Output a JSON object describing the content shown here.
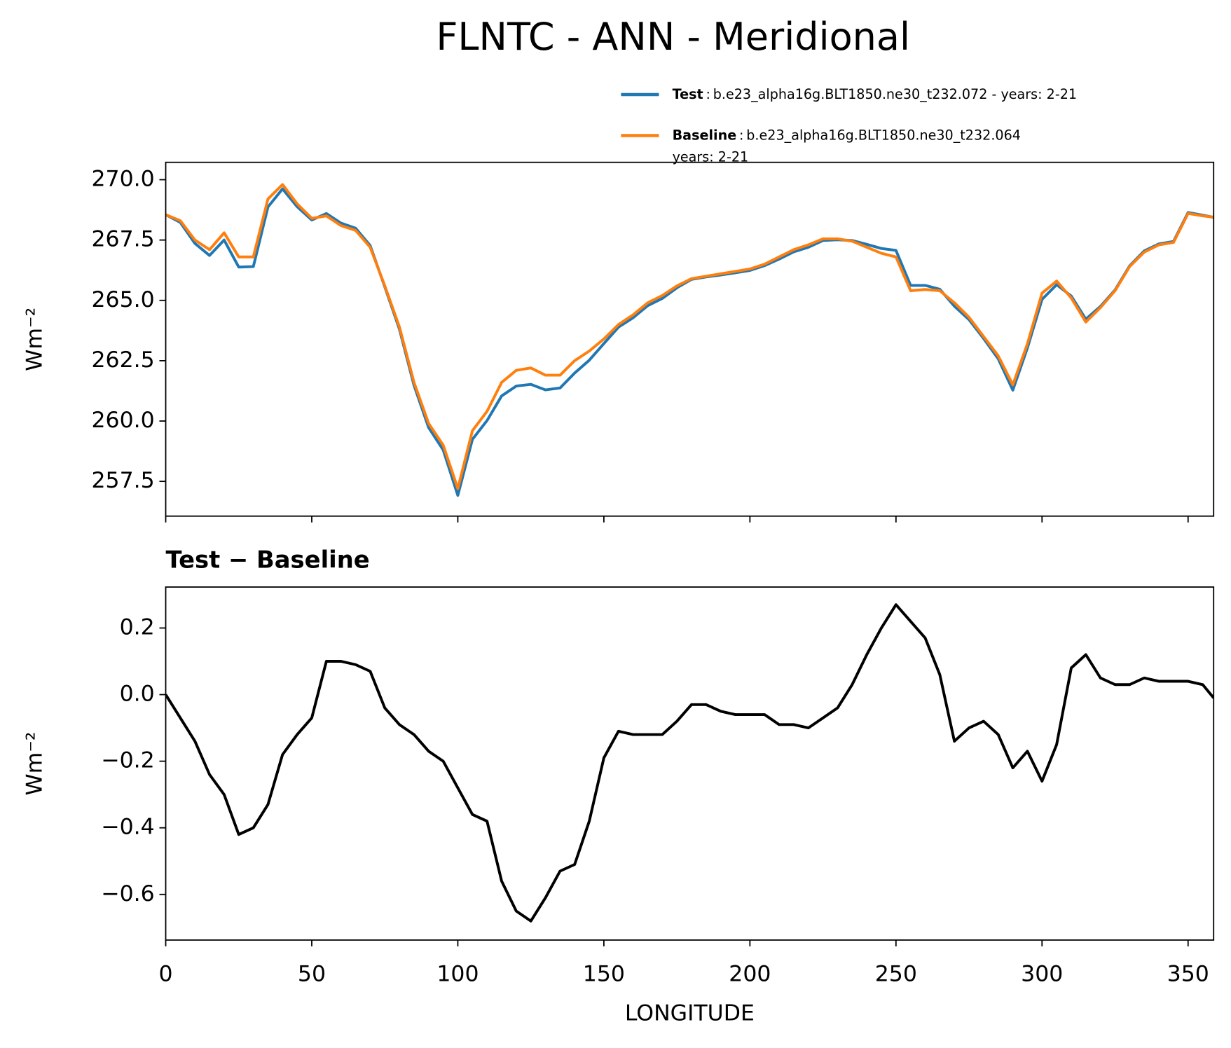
{
  "title": "FLNTC - ANN - Meridional",
  "chart_data": [
    {
      "type": "line",
      "ylabel": "Wm⁻²",
      "x": [
        0,
        5,
        10,
        15,
        20,
        25,
        30,
        35,
        40,
        45,
        50,
        55,
        60,
        65,
        70,
        75,
        80,
        85,
        90,
        95,
        100,
        105,
        110,
        115,
        120,
        125,
        130,
        135,
        140,
        145,
        150,
        155,
        160,
        165,
        170,
        175,
        180,
        185,
        190,
        195,
        200,
        205,
        210,
        215,
        220,
        225,
        230,
        235,
        240,
        245,
        250,
        255,
        260,
        265,
        270,
        275,
        280,
        285,
        290,
        295,
        300,
        305,
        310,
        315,
        320,
        325,
        330,
        335,
        340,
        345,
        350,
        355,
        358.75
      ],
      "series": [
        {
          "name": "Test",
          "label": [
            "b.e23_alpha16g.BLT1850.ne30_t232.072 - years: 2-21"
          ],
          "color": "#1f77b4",
          "values": [
            268.55,
            268.23,
            267.36,
            266.86,
            267.5,
            266.38,
            266.4,
            268.87,
            269.62,
            268.88,
            268.33,
            268.6,
            268.2,
            267.99,
            267.27,
            265.56,
            263.81,
            261.48,
            259.73,
            258.8,
            256.92,
            259.24,
            260.02,
            261.04,
            261.45,
            261.52,
            261.29,
            261.37,
            261.99,
            262.52,
            263.21,
            263.89,
            264.28,
            264.78,
            265.08,
            265.52,
            265.87,
            265.97,
            266.05,
            266.14,
            266.24,
            266.44,
            266.71,
            267.01,
            267.2,
            267.48,
            267.51,
            267.48,
            267.32,
            267.15,
            267.07,
            265.62,
            265.62,
            265.46,
            264.76,
            264.2,
            263.42,
            262.58,
            261.28,
            263.03,
            265.04,
            265.65,
            265.18,
            264.22,
            264.75,
            265.43,
            266.43,
            267.05,
            267.34,
            267.44,
            268.64,
            268.53,
            268.44
          ]
        },
        {
          "name": "Baseline",
          "label": [
            "b.e23_alpha16g.BLT1850.ne30_t232.064",
            "years: 2-21"
          ],
          "color": "#ff7f0e",
          "values": [
            268.55,
            268.3,
            267.5,
            267.1,
            267.8,
            266.8,
            266.8,
            269.2,
            269.8,
            269.0,
            268.4,
            268.5,
            268.1,
            267.9,
            267.2,
            265.6,
            263.9,
            261.6,
            259.9,
            259.0,
            257.2,
            259.6,
            260.4,
            261.6,
            262.1,
            262.2,
            261.9,
            261.9,
            262.5,
            262.9,
            263.4,
            264.0,
            264.4,
            264.9,
            265.2,
            265.6,
            265.9,
            266.0,
            266.1,
            266.2,
            266.3,
            266.5,
            266.8,
            267.1,
            267.3,
            267.55,
            267.55,
            267.45,
            267.2,
            266.95,
            266.8,
            265.4,
            265.45,
            265.4,
            264.9,
            264.3,
            263.5,
            262.7,
            261.5,
            263.2,
            265.3,
            265.8,
            265.1,
            264.1,
            264.7,
            265.4,
            266.4,
            267.0,
            267.3,
            267.4,
            268.6,
            268.5,
            268.45
          ]
        }
      ],
      "xlim": [
        0,
        358.75
      ],
      "xticks": [
        0,
        50,
        100,
        150,
        200,
        250,
        300,
        350
      ],
      "ylim": [
        256.06,
        270.72
      ],
      "yticks": [
        {
          "value": 257.5,
          "label": "257.5"
        },
        {
          "value": 260,
          "label": "260.0"
        },
        {
          "value": 262.5,
          "label": "262.5"
        },
        {
          "value": 265,
          "label": "265.0"
        },
        {
          "value": 267.5,
          "label": "267.5"
        },
        {
          "value": 270,
          "label": "270.0"
        }
      ]
    },
    {
      "type": "line",
      "title": "Test − Baseline",
      "ylabel": "Wm⁻²",
      "xlabel": "LONGITUDE",
      "color": "#000000",
      "x": [
        0,
        5,
        10,
        15,
        20,
        25,
        30,
        35,
        40,
        45,
        50,
        55,
        60,
        65,
        70,
        75,
        80,
        85,
        90,
        95,
        100,
        105,
        110,
        115,
        120,
        125,
        130,
        135,
        140,
        145,
        150,
        155,
        160,
        165,
        170,
        175,
        180,
        185,
        190,
        195,
        200,
        205,
        210,
        215,
        220,
        225,
        230,
        235,
        240,
        245,
        250,
        255,
        260,
        265,
        270,
        275,
        280,
        285,
        290,
        295,
        300,
        305,
        310,
        315,
        320,
        325,
        330,
        335,
        340,
        345,
        350,
        355,
        358.75
      ],
      "values": [
        0.0,
        -0.07,
        -0.14,
        -0.24,
        -0.3,
        -0.42,
        -0.4,
        -0.33,
        -0.18,
        -0.12,
        -0.07,
        0.1,
        0.1,
        0.09,
        0.07,
        -0.04,
        -0.09,
        -0.12,
        -0.17,
        -0.2,
        -0.28,
        -0.36,
        -0.38,
        -0.56,
        -0.65,
        -0.68,
        -0.61,
        -0.53,
        -0.51,
        -0.38,
        -0.19,
        -0.11,
        -0.12,
        -0.12,
        -0.12,
        -0.08,
        -0.03,
        -0.03,
        -0.05,
        -0.06,
        -0.06,
        -0.06,
        -0.09,
        -0.09,
        -0.1,
        -0.07,
        -0.04,
        0.03,
        0.12,
        0.2,
        0.27,
        0.22,
        0.17,
        0.06,
        -0.14,
        -0.1,
        -0.08,
        -0.12,
        -0.22,
        -0.17,
        -0.26,
        -0.15,
        0.08,
        0.12,
        0.05,
        0.03,
        0.03,
        0.05,
        0.04,
        0.04,
        0.04,
        0.03,
        -0.01
      ],
      "xlim": [
        0,
        358.75
      ],
      "xticks": [
        0,
        50,
        100,
        150,
        200,
        250,
        300,
        350
      ],
      "ylim": [
        -0.737,
        0.323
      ],
      "yticks": [
        {
          "value": -0.6,
          "label": "−0.6"
        },
        {
          "value": -0.4,
          "label": "−0.4"
        },
        {
          "value": -0.2,
          "label": "−0.2"
        },
        {
          "value": 0,
          "label": "0.0"
        },
        0.2
      ]
    }
  ]
}
